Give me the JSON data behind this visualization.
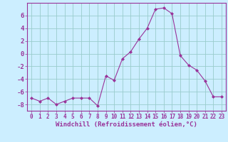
{
  "x": [
    0,
    1,
    2,
    3,
    4,
    5,
    6,
    7,
    8,
    9,
    10,
    11,
    12,
    13,
    14,
    15,
    16,
    17,
    18,
    19,
    20,
    21,
    22,
    23
  ],
  "y": [
    -7,
    -7.5,
    -7,
    -8,
    -7.5,
    -7,
    -7,
    -7,
    -8.2,
    -3.5,
    -4.2,
    -0.8,
    0.3,
    2.3,
    4.0,
    7.0,
    7.2,
    6.3,
    -0.3,
    -1.8,
    -2.6,
    -4.3,
    -6.8,
    -6.8
  ],
  "line_color": "#993399",
  "marker": "D",
  "marker_size": 2.0,
  "bg_color": "#cceeff",
  "grid_color": "#99cccc",
  "xlabel": "Windchill (Refroidissement éolien,°C)",
  "ylabel": "",
  "xlim": [
    -0.5,
    23.5
  ],
  "ylim": [
    -9,
    8
  ],
  "yticks": [
    -8,
    -6,
    -4,
    -2,
    0,
    2,
    4,
    6
  ],
  "xticks": [
    0,
    1,
    2,
    3,
    4,
    5,
    6,
    7,
    8,
    9,
    10,
    11,
    12,
    13,
    14,
    15,
    16,
    17,
    18,
    19,
    20,
    21,
    22,
    23
  ],
  "tick_color": "#993399",
  "axis_color": "#993399",
  "label_fontsize": 6.5,
  "tick_fontsize": 5.5,
  "ytick_fontsize": 6.5
}
